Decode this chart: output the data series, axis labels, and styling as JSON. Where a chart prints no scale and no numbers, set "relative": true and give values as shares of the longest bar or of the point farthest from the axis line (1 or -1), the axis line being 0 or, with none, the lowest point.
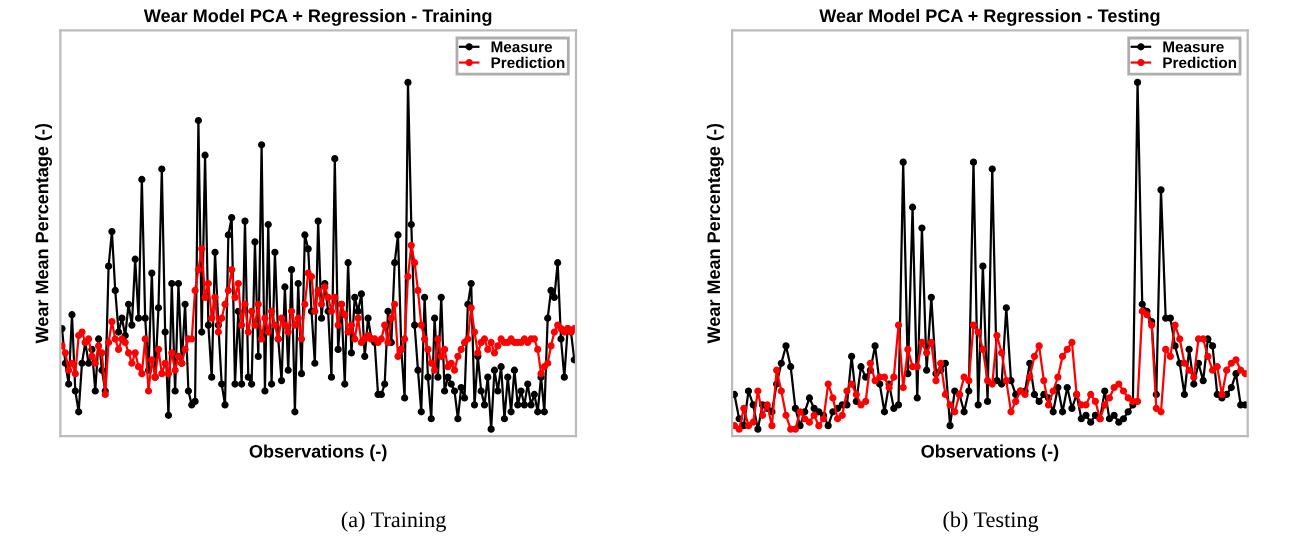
{
  "chart_data": [
    {
      "type": "line",
      "title": "Wear Model PCA + Regression - Training",
      "xlabel": "Observations (-)",
      "ylabel": "Wear Mean Percentage (-)",
      "relative": true,
      "legend": "top right",
      "marker": "circle",
      "annotations": [
        "(a) Training"
      ],
      "categories": [
        null,
        null,
        null,
        null,
        null,
        null,
        null,
        null,
        null,
        null,
        null,
        null,
        null,
        null,
        null,
        null,
        null,
        null,
        null,
        null,
        null,
        null,
        null,
        null,
        null,
        null,
        null,
        null,
        null,
        null,
        null,
        null,
        null,
        null,
        null,
        null,
        null,
        null,
        null,
        null,
        null,
        null,
        null,
        null,
        null,
        null,
        null,
        null,
        null,
        null,
        null,
        null,
        null,
        null,
        null,
        null,
        null,
        null,
        null,
        null,
        null,
        null,
        null,
        null,
        null,
        null,
        null,
        null,
        null,
        null,
        null,
        null,
        null,
        null,
        null,
        null,
        null,
        null,
        null,
        null,
        null,
        null,
        null,
        null,
        null,
        null,
        null,
        null,
        null,
        null,
        null,
        null,
        null,
        null,
        null,
        null,
        null,
        null,
        null,
        null,
        null,
        null,
        null,
        null,
        null,
        null,
        null,
        null,
        null,
        null,
        null,
        null,
        null,
        null,
        null,
        null,
        null,
        null,
        null,
        null,
        null,
        null,
        null,
        null,
        null,
        null,
        null,
        null,
        null,
        null,
        null,
        null,
        null,
        null,
        null,
        null,
        null,
        null,
        null,
        null,
        null,
        null,
        null,
        null,
        null,
        null,
        null,
        null,
        null,
        null,
        null,
        null,
        null,
        null,
        null
      ],
      "series": [
        {
          "name": "Measure",
          "color": "#000000",
          "values": [
            0.29,
            0.19,
            0.13,
            0.33,
            0.11,
            0.05,
            0.19,
            0.25,
            0.19,
            0.23,
            0.11,
            0.26,
            0.17,
            0.11,
            0.47,
            0.57,
            0.4,
            0.28,
            0.32,
            0.27,
            0.36,
            0.3,
            0.49,
            0.32,
            0.72,
            0.32,
            0.17,
            0.45,
            0.15,
            0.35,
            0.75,
            0.28,
            0.04,
            0.42,
            0.11,
            0.42,
            0.19,
            0.36,
            0.11,
            0.07,
            0.08,
            0.89,
            0.28,
            0.79,
            0.3,
            0.15,
            0.51,
            0.3,
            0.13,
            0.07,
            0.56,
            0.61,
            0.13,
            0.34,
            0.13,
            0.6,
            0.15,
            0.13,
            0.54,
            0.21,
            0.82,
            0.11,
            0.59,
            0.13,
            0.51,
            0.26,
            0.14,
            0.41,
            0.17,
            0.46,
            0.05,
            0.42,
            0.16,
            0.56,
            0.52,
            0.34,
            0.19,
            0.6,
            0.32,
            0.42,
            0.34,
            0.15,
            0.78,
            0.23,
            0.36,
            0.13,
            0.48,
            0.22,
            0.38,
            0.34,
            0.39,
            0.21,
            0.32,
            0.26,
            0.25,
            0.1,
            0.1,
            0.13,
            0.34,
            0.25,
            0.48,
            0.56,
            0.23,
            0.09,
            1,
            0.59,
            0.3,
            0.17,
            0.05,
            0.38,
            0.15,
            0.03,
            0.32,
            0.15,
            0.38,
            0.11,
            0.15,
            0.13,
            0.11,
            0.03,
            0.12,
            0.09,
            0.36,
            0.42,
            0.07,
            0.21,
            0.11,
            0.07,
            0.15,
            0,
            0.17,
            0.11,
            0.18,
            0.03,
            0.15,
            0.05,
            0.17,
            0.07,
            0.11,
            0.07,
            0.13,
            0.07,
            0.1,
            0.05,
            0.15,
            0.05,
            0.32,
            0.4,
            0.38,
            0.48,
            0.26,
            0.15,
            0.29,
            0.28,
            0.2
          ]
        },
        {
          "name": "Prediction",
          "color": "#ff0000",
          "values": [
            0.24,
            0.22,
            0.17,
            0.19,
            0.16,
            0.27,
            0.28,
            0.25,
            0.26,
            0.21,
            0.19,
            0.24,
            0.22,
            0.1,
            0.25,
            0.31,
            0.26,
            0.23,
            0.26,
            0.25,
            0.22,
            0.19,
            0.22,
            0.18,
            0.16,
            0.26,
            0.11,
            0.2,
            0.15,
            0.23,
            0.16,
            0.19,
            0.16,
            0.22,
            0.17,
            0.21,
            0.19,
            0.23,
            0.26,
            0.26,
            0.4,
            0.46,
            0.52,
            0.38,
            0.42,
            0.32,
            0.38,
            0.28,
            0.32,
            0.36,
            0.4,
            0.46,
            0.38,
            0.42,
            0.3,
            0.36,
            0.28,
            0.34,
            0.3,
            0.36,
            0.26,
            0.32,
            0.28,
            0.34,
            0.3,
            0.26,
            0.32,
            0.3,
            0.28,
            0.34,
            0.3,
            0.32,
            0.26,
            0.36,
            0.45,
            0.44,
            0.34,
            0.4,
            0.36,
            0.41,
            0.38,
            0.34,
            0.38,
            0.3,
            0.36,
            0.33,
            0.28,
            0.3,
            0.26,
            0.32,
            0.25,
            0.26,
            0.27,
            0.26,
            0.26,
            0.25,
            0.26,
            0.3,
            0.25,
            0.32,
            0.36,
            0.21,
            0.23,
            0.26,
            0.44,
            0.53,
            0.48,
            0.4,
            0.3,
            0.26,
            0.23,
            0.19,
            0.17,
            0.26,
            0.21,
            0.23,
            0.18,
            0.19,
            0.17,
            0.21,
            0.23,
            0.25,
            0.26,
            0.35,
            0.28,
            0.22,
            0.25,
            0.26,
            0.23,
            0.25,
            0.22,
            0.24,
            0.26,
            0.25,
            0.25,
            0.26,
            0.25,
            0.25,
            0.25,
            0.26,
            0.25,
            0.26,
            0.26,
            0.23,
            0.16,
            0.18,
            0.19,
            0.24,
            0.28,
            0.3,
            0.29,
            0.28,
            0.29,
            0.28,
            0.29
          ]
        }
      ]
    },
    {
      "type": "line",
      "title": "Wear Model PCA + Regression - Testing",
      "xlabel": "Observations (-)",
      "ylabel": "Wear Mean Percentage (-)",
      "relative": true,
      "legend": "top right",
      "marker": "circle",
      "annotations": [
        "(b) Testing"
      ],
      "categories": [
        null,
        null,
        null,
        null,
        null,
        null,
        null,
        null,
        null,
        null,
        null,
        null,
        null,
        null,
        null,
        null,
        null,
        null,
        null,
        null,
        null,
        null,
        null,
        null,
        null,
        null,
        null,
        null,
        null,
        null,
        null,
        null,
        null,
        null,
        null,
        null,
        null,
        null,
        null,
        null,
        null,
        null,
        null,
        null,
        null,
        null,
        null,
        null,
        null,
        null,
        null,
        null,
        null,
        null,
        null,
        null,
        null,
        null,
        null,
        null,
        null,
        null,
        null,
        null,
        null,
        null,
        null,
        null,
        null,
        null,
        null,
        null,
        null,
        null,
        null,
        null,
        null,
        null,
        null,
        null,
        null,
        null,
        null,
        null,
        null,
        null,
        null,
        null,
        null,
        null,
        null,
        null,
        null,
        null,
        null,
        null,
        null,
        null,
        null,
        null,
        null,
        null,
        null,
        null,
        null,
        null,
        null,
        null,
        null,
        null
      ],
      "series": [
        {
          "name": "Measure",
          "color": "#000000",
          "values": [
            0.1,
            0.03,
            0.01,
            0.11,
            0.07,
            0,
            0.07,
            0.06,
            0.05,
            0.13,
            0.19,
            0.24,
            0.18,
            0.06,
            0.01,
            0.05,
            0.09,
            0.06,
            0.05,
            0.04,
            0.01,
            0.05,
            0.06,
            0.07,
            0.07,
            0.21,
            0.08,
            0.18,
            0.15,
            0.17,
            0.24,
            0.13,
            0.05,
            0.13,
            0.06,
            0.07,
            0.77,
            0.16,
            0.64,
            0.09,
            0.58,
            0.17,
            0.38,
            0.16,
            0.17,
            0.19,
            0.01,
            0.11,
            0.1,
            0.05,
            0.11,
            0.77,
            0.07,
            0.47,
            0.08,
            0.75,
            0.14,
            0.13,
            0.35,
            0.14,
            0.1,
            0.11,
            0.11,
            0.19,
            0.1,
            0.08,
            0.1,
            0.09,
            0.05,
            0.12,
            0.05,
            0.12,
            0.06,
            0.1,
            0.03,
            0.04,
            0.02,
            0.04,
            0.03,
            0.11,
            0.03,
            0.04,
            0.02,
            0.03,
            0.05,
            0.07,
            1,
            0.36,
            0.34,
            0.31,
            0.1,
            0.69,
            0.32,
            0.32,
            0.24,
            0.19,
            0.1,
            0.23,
            0.13,
            0.19,
            0.14,
            0.26,
            0.24,
            0.1,
            0.09,
            0.1,
            0.12,
            0.16,
            0.07,
            0.07
          ]
        },
        {
          "name": "Prediction",
          "color": "#ff0000",
          "values": [
            0.01,
            0,
            0.06,
            0.01,
            0.02,
            0.11,
            0.04,
            0.07,
            0.01,
            0.17,
            0.11,
            0.04,
            0,
            0,
            0.05,
            0.03,
            0.02,
            0.04,
            0.01,
            0.03,
            0.13,
            0.09,
            0.03,
            0.04,
            0.11,
            0.13,
            0.1,
            0.07,
            0.08,
            0.19,
            0.14,
            0.15,
            0.15,
            0.12,
            0.15,
            0.3,
            0.12,
            0.23,
            0.18,
            0.18,
            0.25,
            0.22,
            0.25,
            0.14,
            0.19,
            0.1,
            0.07,
            0.05,
            0.1,
            0.15,
            0.14,
            0.3,
            0.28,
            0.23,
            0.14,
            0.13,
            0.27,
            0.22,
            0.14,
            0.05,
            0.08,
            0.11,
            0.1,
            0.15,
            0.21,
            0.24,
            0.14,
            0.07,
            0.11,
            0.15,
            0.21,
            0.23,
            0.25,
            0.1,
            0.07,
            0.07,
            0.1,
            0.08,
            0.03,
            0.07,
            0.09,
            0.12,
            0.13,
            0.11,
            0.09,
            0.08,
            0.08,
            0.34,
            0.33,
            0.3,
            0.06,
            0.05,
            0.23,
            0.21,
            0.3,
            0.26,
            0.19,
            0.17,
            0.15,
            0.26,
            0.26,
            0.21,
            0.17,
            0.18,
            0.1,
            0.17,
            0.19,
            0.2,
            0.17,
            0.16
          ]
        }
      ]
    }
  ]
}
